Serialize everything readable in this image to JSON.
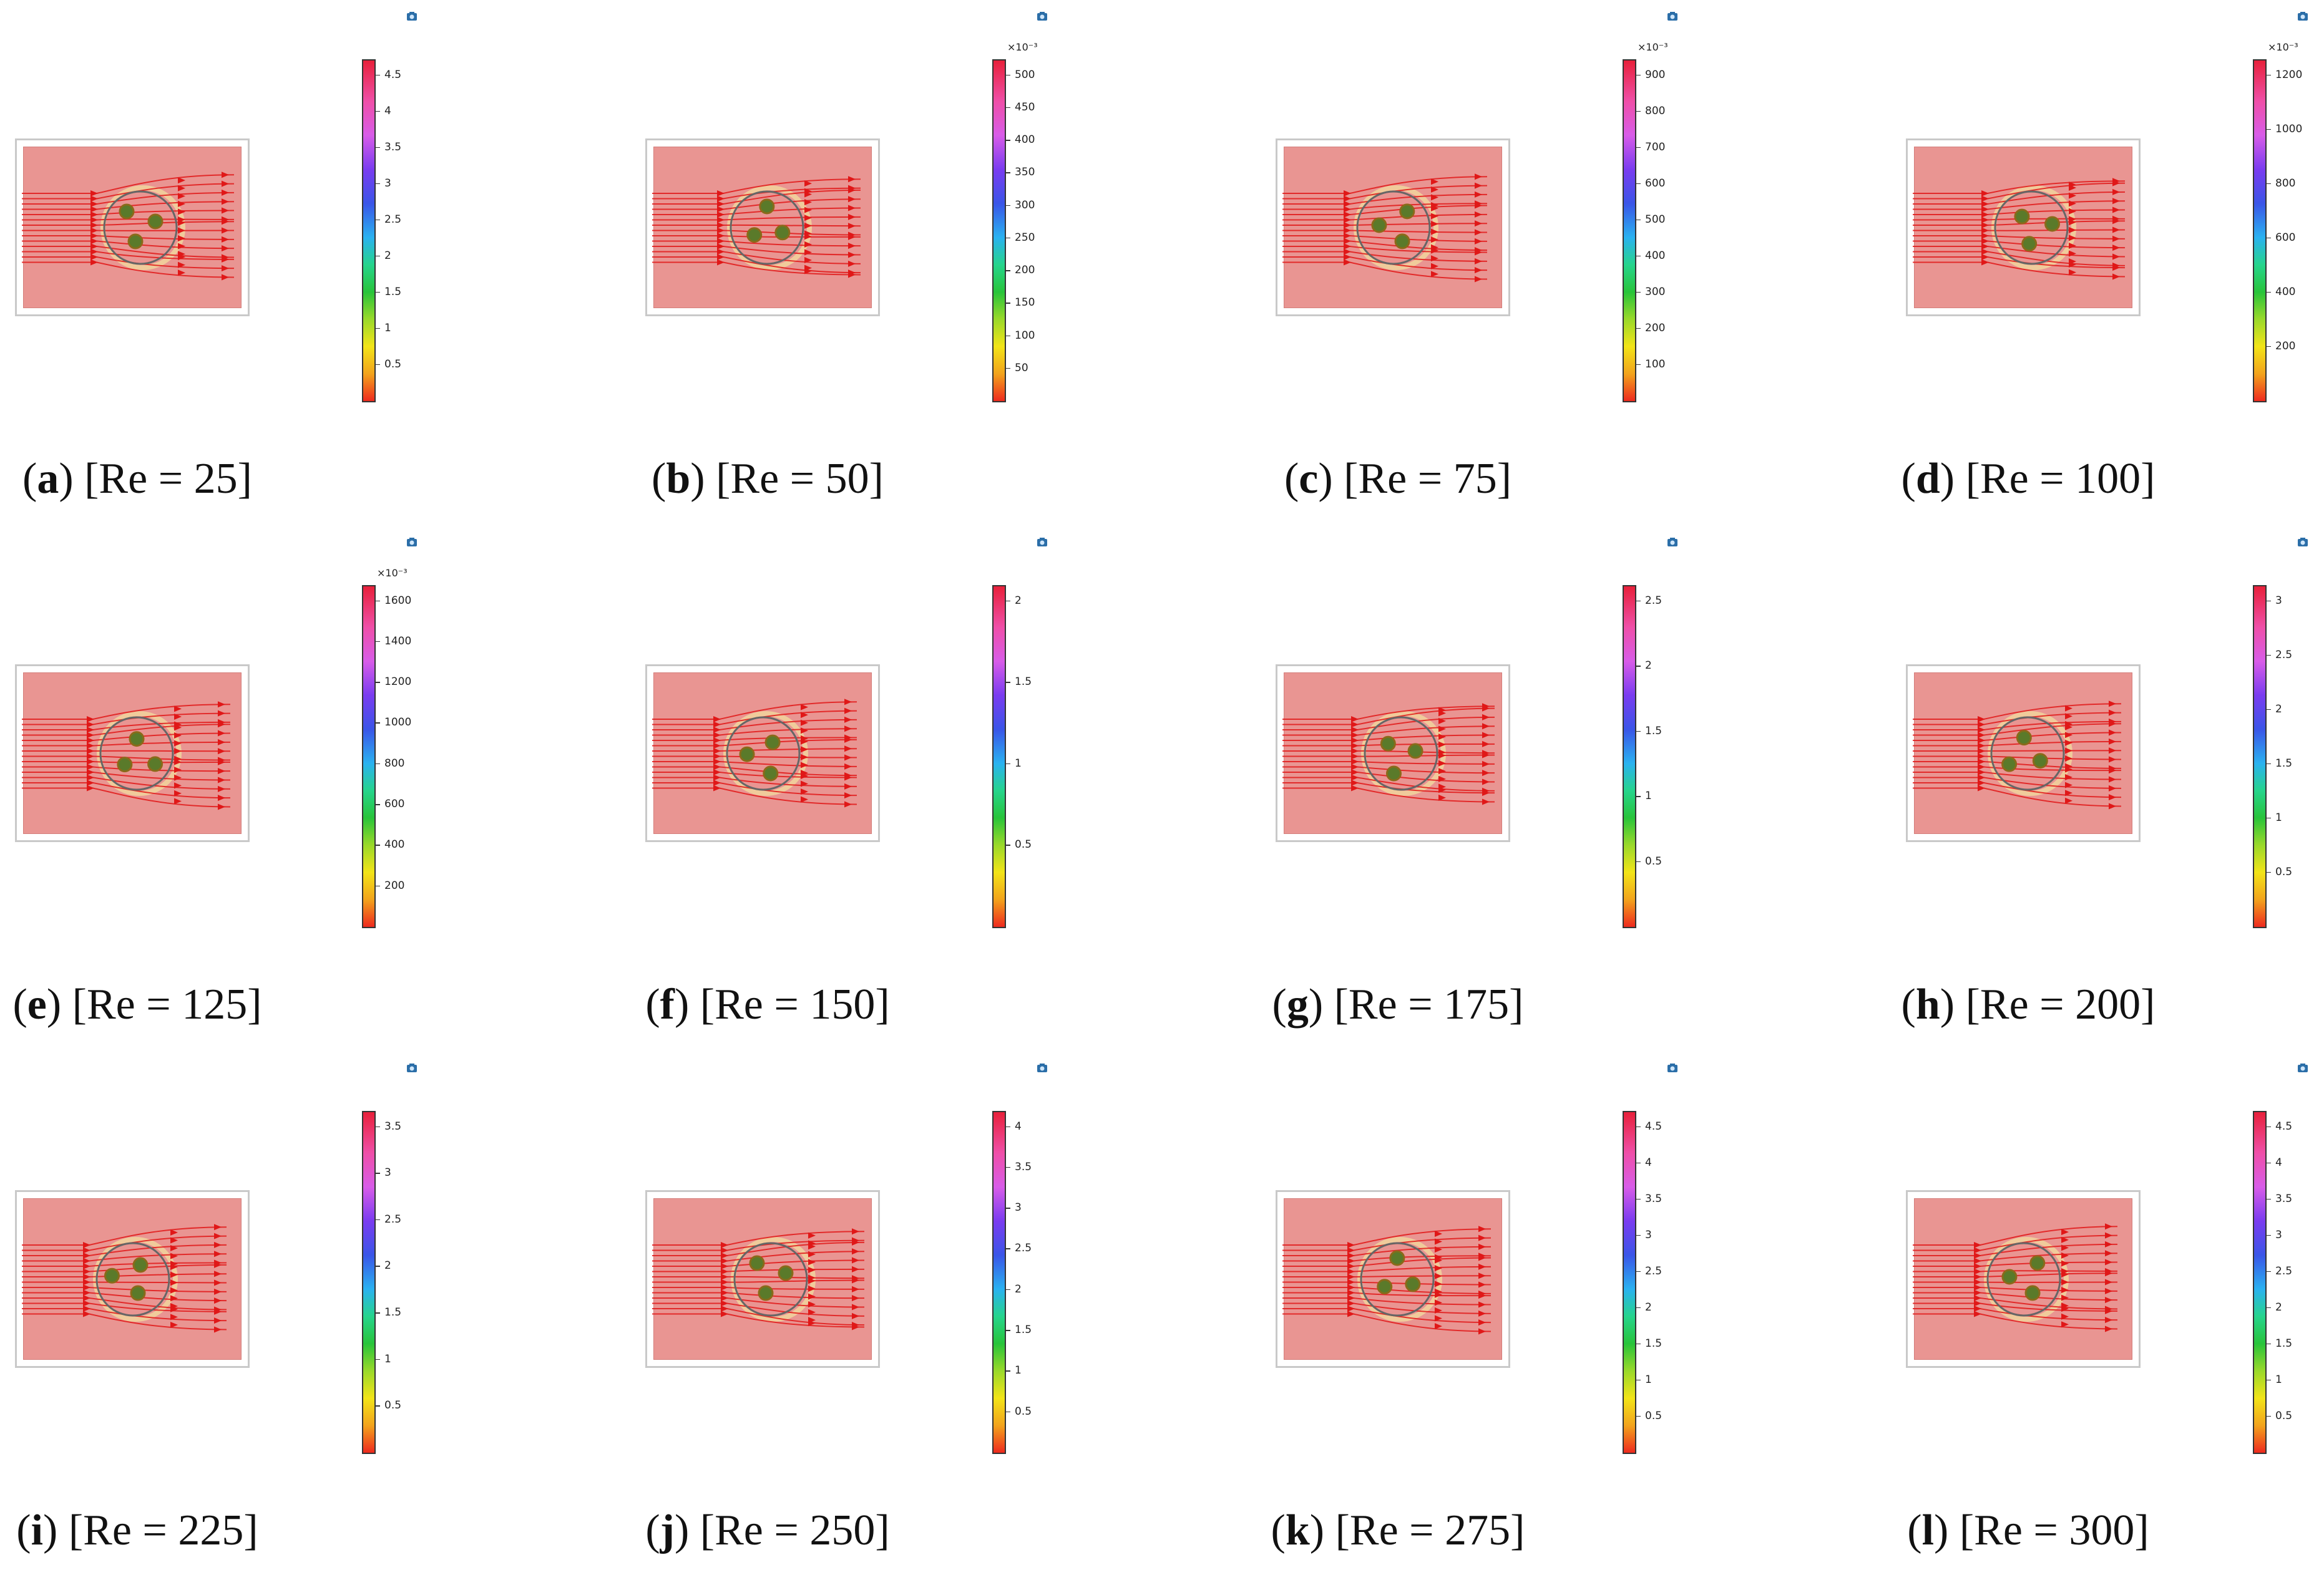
{
  "panels": [
    {
      "letter": "a",
      "caption": "[Re = 25]",
      "multiplier": "",
      "ticks": [
        "4.5",
        "4",
        "3.5",
        "3",
        "2.5",
        "2",
        "1.5",
        "1",
        "0.5"
      ]
    },
    {
      "letter": "b",
      "caption": "[Re = 50]",
      "multiplier": "×10⁻³",
      "ticks": [
        "500",
        "450",
        "400",
        "350",
        "300",
        "250",
        "200",
        "150",
        "100",
        "50"
      ]
    },
    {
      "letter": "c",
      "caption": "[Re = 75]",
      "multiplier": "×10⁻³",
      "ticks": [
        "900",
        "800",
        "700",
        "600",
        "500",
        "400",
        "300",
        "200",
        "100"
      ]
    },
    {
      "letter": "d",
      "caption": "[Re = 100]",
      "multiplier": "×10⁻³",
      "ticks": [
        "1200",
        "1000",
        "800",
        "600",
        "400",
        "200"
      ]
    },
    {
      "letter": "e",
      "caption": "[Re = 125]",
      "multiplier": "×10⁻³",
      "ticks": [
        "1600",
        "1400",
        "1200",
        "1000",
        "800",
        "600",
        "400",
        "200"
      ]
    },
    {
      "letter": "f",
      "caption": "[Re = 150]",
      "multiplier": "",
      "ticks": [
        "2",
        "1.5",
        "1",
        "0.5"
      ]
    },
    {
      "letter": "g",
      "caption": "[Re = 175]",
      "multiplier": "",
      "ticks": [
        "2.5",
        "2",
        "1.5",
        "1",
        "0.5"
      ]
    },
    {
      "letter": "h",
      "caption": "[Re = 200]",
      "multiplier": "",
      "ticks": [
        "3",
        "2.5",
        "2",
        "1.5",
        "1",
        "0.5"
      ]
    },
    {
      "letter": "i",
      "caption": "[Re = 225]",
      "multiplier": "",
      "ticks": [
        "3.5",
        "3",
        "2.5",
        "2",
        "1.5",
        "1",
        "0.5"
      ]
    },
    {
      "letter": "j",
      "caption": "[Re = 250]",
      "multiplier": "",
      "ticks": [
        "4",
        "3.5",
        "3",
        "2.5",
        "2",
        "1.5",
        "1",
        "0.5"
      ]
    },
    {
      "letter": "k",
      "caption": "[Re = 275]",
      "multiplier": "",
      "ticks": [
        "4.5",
        "4",
        "3.5",
        "3",
        "2.5",
        "2",
        "1.5",
        "1",
        "0.5"
      ]
    },
    {
      "letter": "l",
      "caption": "[Re = 300]",
      "multiplier": "",
      "ticks": [
        "4.5",
        "4",
        "3.5",
        "3",
        "2.5",
        "2",
        "1.5",
        "1",
        "0.5"
      ]
    }
  ],
  "colors": {
    "fluid": "#e99592",
    "streamline": "#e01818",
    "particle": "#5a7a2a",
    "particle_outline": "#8a6a1a",
    "cylinder": "#666666"
  }
}
